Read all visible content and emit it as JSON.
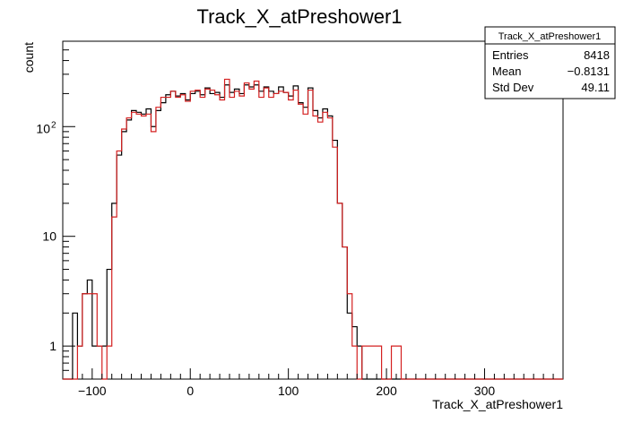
{
  "chart_data": {
    "type": "histogram",
    "title": "Track_X_atPreshower1",
    "xlabel": "Track_X_atPreshower1",
    "ylabel": "count",
    "xlim": [
      -130,
      380
    ],
    "ylim": [
      0.5,
      600
    ],
    "yscale": "log",
    "grid": false,
    "bin_width": 5,
    "x_ticks": [
      -100,
      0,
      100,
      200,
      300
    ],
    "x_tick_labels": [
      "−100",
      "0",
      "100",
      "200",
      "300"
    ],
    "y_ticks": [
      1,
      10,
      100
    ],
    "y_tick_labels": [
      "1",
      "10",
      "10",
      "2"
    ],
    "stats_box": {
      "title": "Track_X_atPreshower1",
      "position": "top-right",
      "rows": [
        {
          "label": "Entries",
          "value": "8418"
        },
        {
          "label": "Mean",
          "value": "−0.8131"
        },
        {
          "label": "Std Dev",
          "value": "49.11"
        }
      ]
    },
    "series": [
      {
        "color": "#000000",
        "x_start": -130,
        "values": [
          0,
          0,
          2,
          1,
          3,
          4,
          1,
          1,
          1,
          5,
          20,
          55,
          90,
          115,
          140,
          135,
          130,
          145,
          100,
          140,
          165,
          195,
          210,
          190,
          200,
          175,
          200,
          210,
          195,
          225,
          200,
          205,
          185,
          240,
          205,
          220,
          200,
          240,
          230,
          240,
          210,
          230,
          210,
          200,
          230,
          205,
          190,
          235,
          165,
          150,
          225,
          140,
          120,
          145,
          125,
          75,
          20,
          8,
          2,
          1.5,
          1,
          0,
          0,
          0,
          0,
          0,
          0,
          0,
          0,
          0,
          0,
          0,
          0,
          0,
          0,
          0,
          0,
          0,
          0,
          0,
          0,
          0,
          0,
          0,
          0,
          0,
          0,
          0,
          0,
          0,
          0,
          0,
          0,
          0,
          0,
          0,
          0,
          0,
          0,
          0,
          0,
          0
        ]
      },
      {
        "color": "#d42020",
        "x_start": -130,
        "values": [
          0,
          0,
          0,
          1,
          3,
          3,
          3,
          1,
          0,
          1,
          15,
          60,
          95,
          120,
          135,
          130,
          125,
          130,
          90,
          150,
          185,
          185,
          210,
          185,
          195,
          170,
          210,
          215,
          185,
          220,
          215,
          195,
          175,
          270,
          185,
          210,
          190,
          250,
          220,
          260,
          185,
          225,
          185,
          200,
          210,
          205,
          175,
          215,
          160,
          130,
          215,
          125,
          110,
          135,
          120,
          65,
          20,
          8,
          3,
          1,
          0,
          1,
          1,
          1,
          1,
          0,
          0,
          1,
          1,
          0,
          0,
          0,
          0,
          0,
          0,
          0,
          0,
          0,
          0,
          0,
          0,
          0,
          0,
          0,
          0,
          0,
          0,
          0,
          0,
          0,
          0,
          0,
          0,
          0,
          0,
          0,
          0,
          0,
          0,
          0,
          0,
          0
        ]
      }
    ]
  }
}
